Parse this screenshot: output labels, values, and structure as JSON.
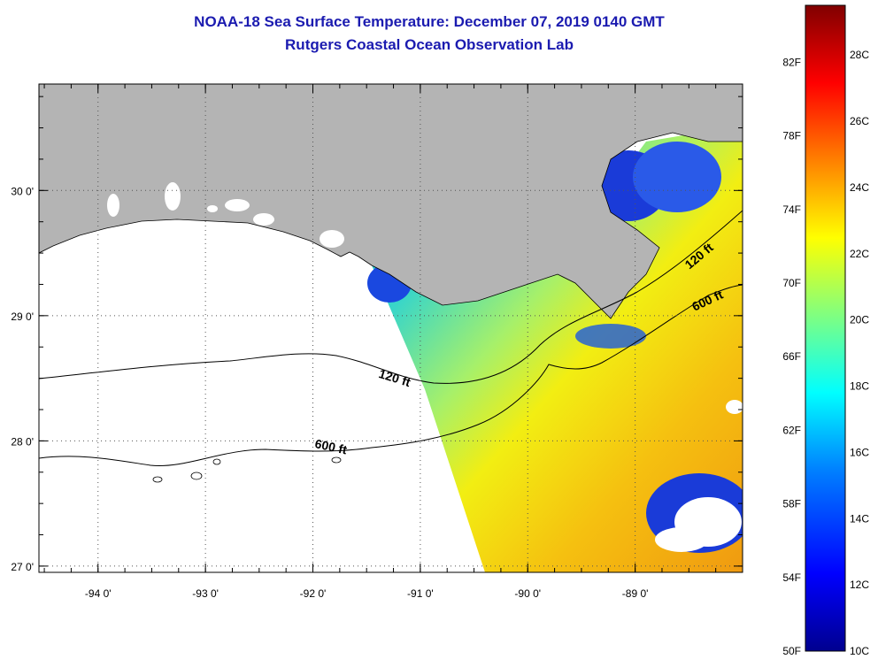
{
  "title": "NOAA-18 Sea Surface Temperature:  December 07, 2019 0140 GMT",
  "subtitle": "Rutgers Coastal Ocean Observation Lab",
  "map": {
    "lon_ticks": [
      "-94 0'",
      "-93 0'",
      "-92 0'",
      "-91 0'",
      "-90 0'",
      "-89 0'"
    ],
    "lat_ticks": [
      "30 0'",
      "29 0'",
      "28 0'",
      "27 0'"
    ],
    "lon_values": [
      -94,
      -93,
      -92,
      -91,
      -90,
      -89
    ],
    "lat_values": [
      30,
      29,
      28,
      27
    ],
    "lon_range": [
      -94.55,
      -88.0
    ],
    "lat_range": [
      26.95,
      30.85
    ],
    "contour_labels": [
      {
        "text": "120 ft",
        "lon": -91.25,
        "lat": 28.47,
        "angle": 17
      },
      {
        "text": "600 ft",
        "lon": -91.84,
        "lat": 27.92,
        "angle": 12
      },
      {
        "text": "120 ft",
        "lon": -88.38,
        "lat": 29.45,
        "angle": -40
      },
      {
        "text": "600 ft",
        "lon": -88.31,
        "lat": 29.09,
        "angle": -25
      }
    ],
    "land_color": "#b4b4b4",
    "grid": "dotted"
  },
  "colorbar": {
    "f_labels": [
      "82F",
      "78F",
      "74F",
      "70F",
      "66F",
      "62F",
      "58F",
      "54F",
      "50F"
    ],
    "f_values": [
      82,
      78,
      74,
      70,
      66,
      62,
      58,
      54,
      50
    ],
    "c_labels": [
      "28C",
      "26C",
      "24C",
      "22C",
      "20C",
      "18C",
      "16C",
      "14C",
      "12C",
      "10C"
    ],
    "c_values": [
      28,
      26,
      24,
      22,
      20,
      18,
      16,
      14,
      12,
      10
    ],
    "range_c": [
      10,
      29.5
    ],
    "colors": [
      "#00008f",
      "#0000ff",
      "#0080ff",
      "#00ffff",
      "#80ff80",
      "#ffff00",
      "#ff8000",
      "#ff0000",
      "#800000"
    ]
  }
}
